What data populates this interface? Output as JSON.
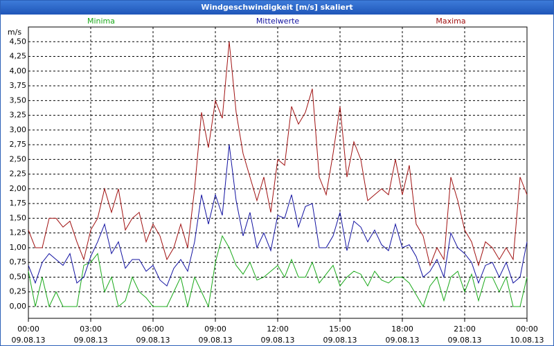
{
  "window": {
    "title": "Windgeschwindigkeit [m/s] skaliert"
  },
  "chart_data": {
    "type": "line",
    "y_unit": "m/s",
    "x": [
      0,
      20,
      40,
      60,
      80,
      100,
      120,
      140,
      160,
      180,
      200,
      220,
      240,
      260,
      280,
      300,
      320,
      340,
      360,
      380,
      400,
      420,
      440,
      460,
      480,
      500,
      520,
      540,
      560,
      580,
      600,
      620,
      640,
      660,
      680,
      700,
      720,
      740,
      760,
      780,
      800,
      820,
      840,
      860,
      880,
      900,
      920,
      940,
      960,
      980,
      1000,
      1020,
      1040,
      1060,
      1080,
      1100,
      1120,
      1140,
      1160,
      1180,
      1200,
      1220,
      1240,
      1260,
      1280,
      1300,
      1320,
      1340,
      1360,
      1380,
      1400,
      1420,
      1440
    ],
    "xlim": [
      0,
      1440
    ],
    "xticks": [
      {
        "value": 0,
        "label": "00:00\n09.08.13"
      },
      {
        "value": 180,
        "label": "03:00\n09.08.13"
      },
      {
        "value": 360,
        "label": "06:00\n09.08.13"
      },
      {
        "value": 540,
        "label": "09:00\n09.08.13"
      },
      {
        "value": 720,
        "label": "12:00\n09.08.13"
      },
      {
        "value": 900,
        "label": "15:00\n09.08.13"
      },
      {
        "value": 1080,
        "label": "18:00\n09.08.13"
      },
      {
        "value": 1260,
        "label": "21:00\n09.08.13"
      },
      {
        "value": 1440,
        "label": "00:00\n10.08.13"
      }
    ],
    "ylim": [
      -0.2,
      4.75
    ],
    "yticks": [
      {
        "value": 0,
        "label": "0,00"
      },
      {
        "value": 0.25,
        "label": "0,25"
      },
      {
        "value": 0.5,
        "label": "0,50"
      },
      {
        "value": 0.75,
        "label": "0,75"
      },
      {
        "value": 1,
        "label": "1,00"
      },
      {
        "value": 1.25,
        "label": "1,25"
      },
      {
        "value": 1.5,
        "label": "1,50"
      },
      {
        "value": 1.75,
        "label": "1,75"
      },
      {
        "value": 2,
        "label": "2,00"
      },
      {
        "value": 2.25,
        "label": "2,25"
      },
      {
        "value": 2.5,
        "label": "2,50"
      },
      {
        "value": 2.75,
        "label": "2,75"
      },
      {
        "value": 3,
        "label": "3,00"
      },
      {
        "value": 3.25,
        "label": "3,25"
      },
      {
        "value": 3.5,
        "label": "3,50"
      },
      {
        "value": 3.75,
        "label": "3,75"
      },
      {
        "value": 4,
        "label": "4,00"
      },
      {
        "value": 4.25,
        "label": "4,25"
      },
      {
        "value": 4.5,
        "label": "4,50"
      }
    ],
    "grid": true,
    "series": [
      {
        "name": "Minima",
        "color": "#18a818",
        "values": [
          0.6,
          0,
          0.5,
          0,
          0.25,
          0,
          0,
          0,
          0.7,
          0.75,
          0.9,
          0.25,
          0.5,
          0,
          0.1,
          0.5,
          0.25,
          0.15,
          0,
          0,
          0,
          0.25,
          0.5,
          0,
          0.5,
          0.25,
          0,
          0.75,
          1.2,
          1.0,
          0.7,
          0.55,
          0.75,
          0.45,
          0.5,
          0.6,
          0.7,
          0.5,
          0.8,
          0.5,
          0.5,
          0.75,
          0.4,
          0.55,
          0.7,
          0.35,
          0.5,
          0.6,
          0.55,
          0.35,
          0.6,
          0.45,
          0.4,
          0.5,
          0.5,
          0.4,
          0.2,
          0,
          0.35,
          0.5,
          0.1,
          0.5,
          0.6,
          0.25,
          0.55,
          0.1,
          0.5,
          0.5,
          0.25,
          0.5,
          0,
          0,
          0.5
        ]
      },
      {
        "name": "Mittelwerte",
        "color": "#1010a0",
        "values": [
          0.7,
          0.4,
          0.75,
          0.9,
          0.8,
          0.7,
          0.9,
          0.4,
          0.5,
          0.85,
          1.1,
          1.4,
          0.9,
          1.1,
          0.65,
          0.8,
          0.8,
          0.6,
          0.7,
          0.45,
          0.35,
          0.65,
          0.8,
          0.6,
          1.1,
          1.9,
          1.4,
          1.9,
          1.55,
          2.75,
          1.8,
          1.2,
          1.6,
          1.0,
          1.25,
          0.95,
          1.55,
          1.5,
          1.9,
          1.35,
          1.7,
          1.75,
          1.0,
          1.0,
          1.2,
          1.6,
          0.95,
          1.45,
          1.35,
          1.1,
          1.3,
          1.05,
          0.95,
          1.4,
          1.0,
          1.05,
          0.85,
          0.5,
          0.6,
          0.8,
          0.5,
          1.25,
          1.0,
          0.9,
          0.75,
          0.4,
          0.7,
          0.75,
          0.5,
          0.75,
          0.4,
          0.5,
          1.1
        ]
      },
      {
        "name": "Maxima",
        "color": "#a01010",
        "values": [
          1.3,
          1.0,
          1.0,
          1.5,
          1.5,
          1.35,
          1.45,
          1.1,
          0.8,
          1.3,
          1.5,
          2.0,
          1.6,
          2.0,
          1.3,
          1.5,
          1.6,
          1.1,
          1.4,
          1.2,
          0.8,
          1.0,
          1.4,
          1.0,
          2.0,
          3.3,
          2.7,
          3.5,
          3.2,
          4.5,
          3.3,
          2.6,
          2.2,
          1.8,
          2.2,
          1.6,
          2.5,
          2.4,
          3.4,
          3.1,
          3.3,
          3.7,
          2.2,
          1.9,
          2.6,
          3.4,
          2.2,
          2.8,
          2.5,
          1.8,
          1.9,
          2.0,
          1.9,
          2.5,
          1.9,
          2.4,
          1.4,
          1.2,
          0.7,
          1.0,
          0.8,
          2.2,
          1.8,
          1.3,
          1.1,
          0.7,
          1.1,
          1.0,
          0.8,
          1.0,
          0.8,
          2.2,
          1.9
        ]
      }
    ]
  }
}
